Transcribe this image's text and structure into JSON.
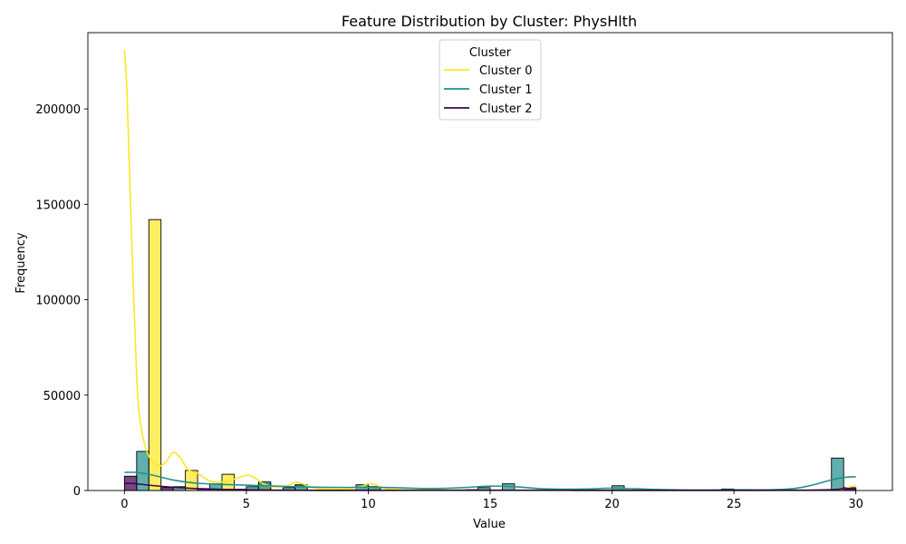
{
  "chart_data": {
    "type": "bar",
    "title": "Feature Distribution by Cluster: PhysHlth",
    "xlabel": "Value",
    "ylabel": "Frequency",
    "xlim": [
      -1.5,
      31.5
    ],
    "ylim": [
      0,
      240000
    ],
    "xticks": [
      0,
      5,
      10,
      15,
      20,
      25,
      30
    ],
    "yticks": [
      0,
      50000,
      100000,
      150000,
      200000
    ],
    "grid": false,
    "legend": {
      "title": "Cluster",
      "placement": "upper-center",
      "entries": [
        "Cluster 0",
        "Cluster 1",
        "Cluster 2"
      ]
    },
    "bin_width": 0.5,
    "series": [
      {
        "name": "Cluster 0",
        "color": "#fde725",
        "bars": [
          {
            "x0": 1.0,
            "x1": 1.5,
            "y": 142000
          },
          {
            "x0": 2.5,
            "x1": 3.0,
            "y": 10500
          },
          {
            "x0": 4.0,
            "x1": 4.5,
            "y": 8500
          },
          {
            "x0": 5.5,
            "x1": 6.0,
            "y": 3500
          },
          {
            "x0": 7.0,
            "x1": 7.5,
            "y": 2500
          },
          {
            "x0": 10.0,
            "x1": 10.5,
            "y": 2000
          }
        ],
        "kde": [
          [
            0,
            231000
          ],
          [
            0.1,
            210000
          ],
          [
            0.25,
            150000
          ],
          [
            0.5,
            60000
          ],
          [
            0.7,
            32000
          ],
          [
            1.0,
            18000
          ],
          [
            1.4,
            13000
          ],
          [
            1.7,
            15000
          ],
          [
            2.0,
            20000
          ],
          [
            2.3,
            17000
          ],
          [
            2.6,
            11000
          ],
          [
            3.0,
            9000
          ],
          [
            3.5,
            5000
          ],
          [
            4.0,
            4500
          ],
          [
            4.5,
            6000
          ],
          [
            5.0,
            8000
          ],
          [
            5.3,
            7000
          ],
          [
            5.7,
            3500
          ],
          [
            6.2,
            1800
          ],
          [
            6.7,
            2500
          ],
          [
            7.0,
            4500
          ],
          [
            7.3,
            3500
          ],
          [
            7.8,
            1200
          ],
          [
            8.5,
            700
          ],
          [
            9.3,
            900
          ],
          [
            9.8,
            2500
          ],
          [
            10.0,
            3500
          ],
          [
            10.3,
            3000
          ],
          [
            10.8,
            800
          ],
          [
            12,
            300
          ],
          [
            14,
            200
          ],
          [
            16,
            150
          ],
          [
            20,
            150
          ],
          [
            25,
            150
          ],
          [
            28,
            200
          ],
          [
            29,
            300
          ],
          [
            29.5,
            800
          ],
          [
            29.8,
            2000
          ],
          [
            30.0,
            2500
          ]
        ]
      },
      {
        "name": "Cluster 1",
        "color": "#21918c",
        "bars": [
          {
            "x0": 0.5,
            "x1": 1.0,
            "y": 20500
          },
          {
            "x0": 2.0,
            "x1": 2.5,
            "y": 2000
          },
          {
            "x0": 3.5,
            "x1": 4.0,
            "y": 3500
          },
          {
            "x0": 5.0,
            "x1": 5.5,
            "y": 2000
          },
          {
            "x0": 5.5,
            "x1": 6.0,
            "y": 4500
          },
          {
            "x0": 6.5,
            "x1": 7.0,
            "y": 1500
          },
          {
            "x0": 7.0,
            "x1": 7.5,
            "y": 3000
          },
          {
            "x0": 9.5,
            "x1": 10.0,
            "y": 3000
          },
          {
            "x0": 10.0,
            "x1": 10.5,
            "y": 2000
          },
          {
            "x0": 14.5,
            "x1": 15.0,
            "y": 1500
          },
          {
            "x0": 15.5,
            "x1": 16.0,
            "y": 3500
          },
          {
            "x0": 20.0,
            "x1": 20.5,
            "y": 2500
          },
          {
            "x0": 24.5,
            "x1": 25.0,
            "y": 800
          },
          {
            "x0": 29.0,
            "x1": 29.5,
            "y": 17000
          },
          {
            "x0": 29.5,
            "x1": 30.0,
            "y": 1000
          }
        ],
        "kde": [
          [
            0,
            9500
          ],
          [
            0.5,
            9500
          ],
          [
            1.0,
            8500
          ],
          [
            1.5,
            7000
          ],
          [
            2.0,
            5500
          ],
          [
            2.5,
            4500
          ],
          [
            3.0,
            3800
          ],
          [
            4.0,
            3200
          ],
          [
            5.0,
            2800
          ],
          [
            6.0,
            2400
          ],
          [
            7.0,
            2000
          ],
          [
            8.0,
            1700
          ],
          [
            9.0,
            1600
          ],
          [
            10.0,
            1700
          ],
          [
            11.0,
            1500
          ],
          [
            12.0,
            1100
          ],
          [
            13.0,
            1100
          ],
          [
            14.0,
            1600
          ],
          [
            15.0,
            2300
          ],
          [
            16.0,
            2000
          ],
          [
            17.0,
            1000
          ],
          [
            18.0,
            700
          ],
          [
            19.0,
            800
          ],
          [
            20.0,
            1200
          ],
          [
            21.0,
            900
          ],
          [
            22.0,
            500
          ],
          [
            23.0,
            300
          ],
          [
            24.0,
            300
          ],
          [
            25.0,
            400
          ],
          [
            26.0,
            350
          ],
          [
            27.0,
            600
          ],
          [
            27.5,
            1100
          ],
          [
            28.0,
            2200
          ],
          [
            28.5,
            3800
          ],
          [
            29.0,
            5600
          ],
          [
            29.5,
            6800
          ],
          [
            30.0,
            7200
          ]
        ]
      },
      {
        "name": "Cluster 2",
        "color": "#440154",
        "bars": [
          {
            "x0": 0.0,
            "x1": 0.5,
            "y": 7500
          },
          {
            "x0": 1.5,
            "x1": 2.0,
            "y": 1500
          },
          {
            "x0": 3.0,
            "x1": 3.5,
            "y": 1000
          },
          {
            "x0": 4.5,
            "x1": 5.0,
            "y": 700
          },
          {
            "x0": 14.0,
            "x1": 14.5,
            "y": 500
          },
          {
            "x0": 29.5,
            "x1": 30.0,
            "y": 1500
          }
        ],
        "kde": [
          [
            0,
            3800
          ],
          [
            0.5,
            3500
          ],
          [
            1.0,
            2800
          ],
          [
            1.5,
            2200
          ],
          [
            2.0,
            1700
          ],
          [
            2.5,
            1300
          ],
          [
            3.0,
            1000
          ],
          [
            4.0,
            600
          ],
          [
            5.0,
            400
          ],
          [
            6.0,
            200
          ],
          [
            8.0,
            100
          ],
          [
            10.0,
            100
          ],
          [
            14.0,
            150
          ],
          [
            15.0,
            150
          ],
          [
            20.0,
            100
          ],
          [
            25.0,
            80
          ],
          [
            28.0,
            150
          ],
          [
            29.0,
            400
          ],
          [
            29.5,
            900
          ],
          [
            30.0,
            1200
          ]
        ]
      }
    ]
  }
}
